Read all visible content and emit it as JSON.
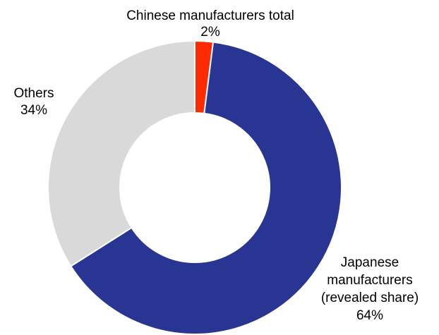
{
  "chart_data": {
    "type": "pie",
    "variant": "donut",
    "title": "",
    "slices": [
      {
        "name": "Chinese manufacturers total",
        "label_lines": [
          "Chinese manufacturers total",
          "2%"
        ],
        "value": 2,
        "percent_label": "2%",
        "color": "#ff2a00"
      },
      {
        "name": "Japanese manufacturers (revealed share)",
        "label_lines": [
          "Japanese",
          "manufacturers",
          "(revealed share)",
          "64%"
        ],
        "value": 64,
        "percent_label": "64%",
        "color": "#283593"
      },
      {
        "name": "Others",
        "label_lines": [
          "Others",
          "34%"
        ],
        "value": 34,
        "percent_label": "34%",
        "color": "#d9d9d9"
      }
    ],
    "start_angle": "12 o'clock",
    "direction": "clockwise",
    "legend": "none"
  }
}
